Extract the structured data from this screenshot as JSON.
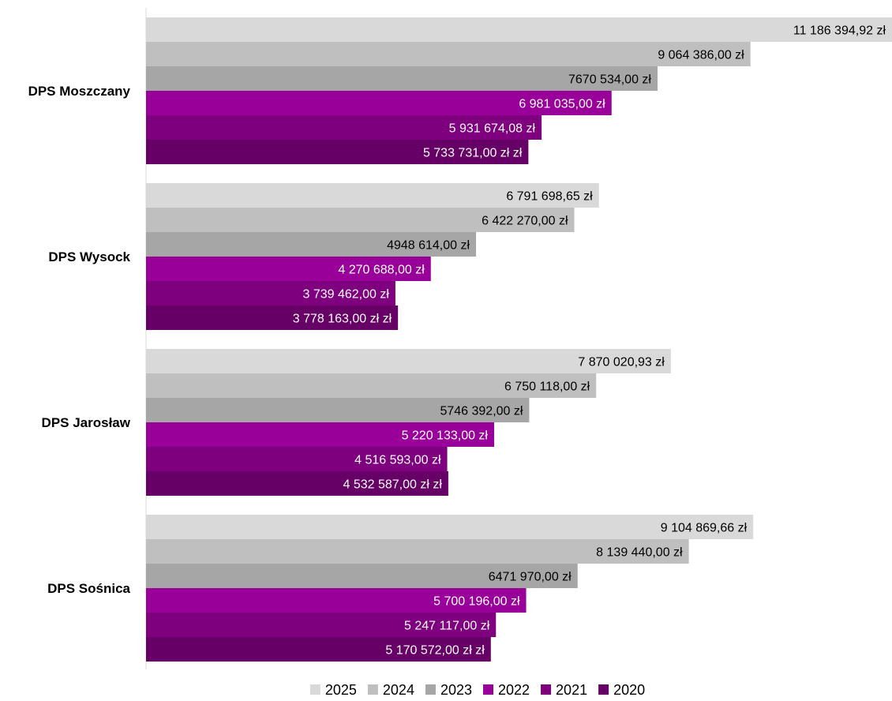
{
  "chart_data": {
    "type": "bar",
    "orientation": "horizontal",
    "categories": [
      "DPS Moszczany",
      "DPS Wysock",
      "DPS Jarosław",
      "DPS Sośnica"
    ],
    "series": [
      {
        "name": "2025",
        "color": "#d9d9d9",
        "values": [
          11186394.92,
          6791698.65,
          7870020.93,
          9104869.66
        ],
        "labels": [
          "11 186 394,92 zł",
          "6 791 698,65 zł",
          "7 870 020,93 zł",
          "9 104 869,66 zł"
        ]
      },
      {
        "name": "2024",
        "color": "#bfbfbf",
        "values": [
          9064386.0,
          6422270.0,
          6750118.0,
          8139440.0
        ],
        "labels": [
          "9 064 386,00 zł",
          "6 422 270,00 zł",
          "6 750 118,00 zł",
          "8 139 440,00 zł"
        ]
      },
      {
        "name": "2023",
        "color": "#a6a6a6",
        "values": [
          7670534.0,
          4948614.0,
          5746392.0,
          6471970.0
        ],
        "labels": [
          "7670 534,00 zł",
          "4948 614,00 zł",
          "5746 392,00 zł",
          "6471 970,00 zł"
        ]
      },
      {
        "name": "2022",
        "color": "#990099",
        "values": [
          6981035.0,
          4270688.0,
          5220133.0,
          5700196.0
        ],
        "labels": [
          "6 981 035,00 zł",
          "4 270 688,00 zł",
          "5 220 133,00 zł",
          "5 700 196,00 zł"
        ]
      },
      {
        "name": "2021",
        "color": "#7f007f",
        "values": [
          5931674.08,
          3739462.0,
          4516593.0,
          5247117.0
        ],
        "labels": [
          "5 931 674,08 zł",
          "3 739 462,00 zł",
          "4 516 593,00 zł",
          "5 247 117,00 zł"
        ]
      },
      {
        "name": "2020",
        "color": "#660066",
        "values": [
          5733731.0,
          3778163.0,
          4532587.0,
          5170572.0
        ],
        "labels": [
          "5 733 731,00 zł zł",
          "3 778 163,00 zł zł",
          "4 532 587,00 zł zł",
          "5 170 572,00 zł zł"
        ]
      }
    ],
    "xlim": [
      0,
      11186394.92
    ],
    "title": "",
    "xlabel": "",
    "ylabel": "",
    "grid": false,
    "legend": "bottom"
  }
}
